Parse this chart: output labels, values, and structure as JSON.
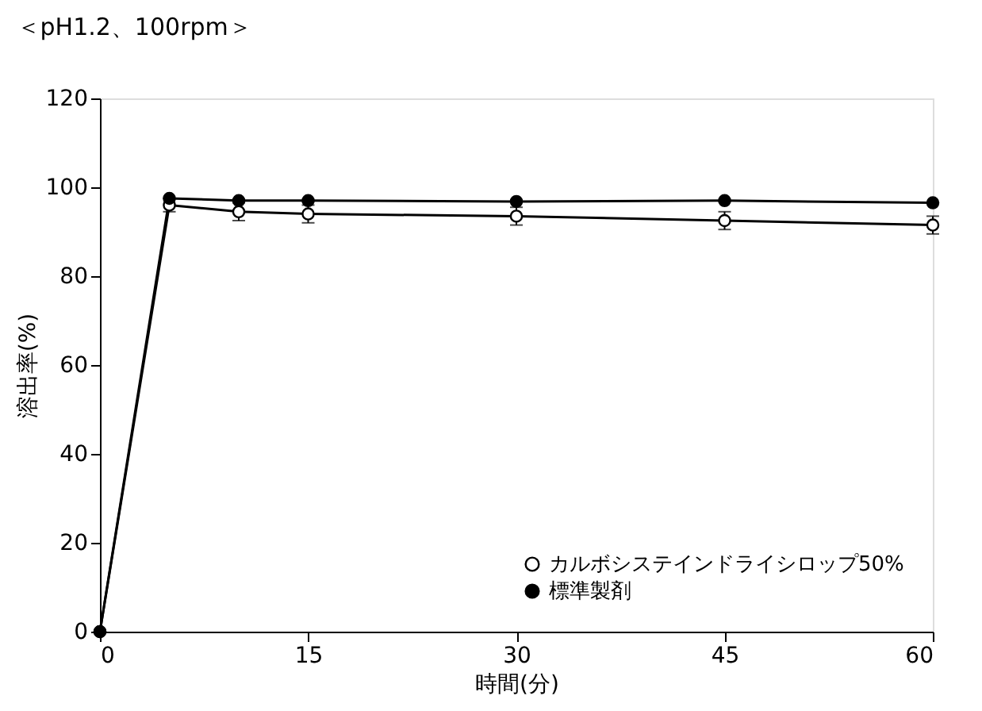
{
  "chart_data": {
    "type": "line",
    "title": "＜pH1.2、100rpm＞",
    "xlabel": "時間(分)",
    "ylabel": "溶出率(%)",
    "x": [
      0,
      5,
      10,
      15,
      30,
      45,
      60
    ],
    "series": [
      {
        "name": "カルボシステインドライシロップ50%",
        "color": "#ffffff",
        "values": [
          0,
          96,
          94.5,
          94,
          93.5,
          92.5,
          91.5
        ],
        "errors": [
          null,
          1.5,
          2,
          2,
          2,
          2,
          2
        ]
      },
      {
        "name": "標準製剤",
        "color": "#000000",
        "values": [
          0,
          97.5,
          97,
          97,
          96.8,
          97,
          96.5
        ]
      }
    ],
    "xlim": [
      0,
      60
    ],
    "xticks": [
      0,
      15,
      30,
      45,
      60
    ],
    "ylim": [
      0,
      120
    ],
    "yticks": [
      0,
      20,
      40,
      60,
      80,
      100,
      120
    ],
    "marker": "circle",
    "line_style": "solid",
    "grid": false,
    "legend": "bottom right"
  }
}
